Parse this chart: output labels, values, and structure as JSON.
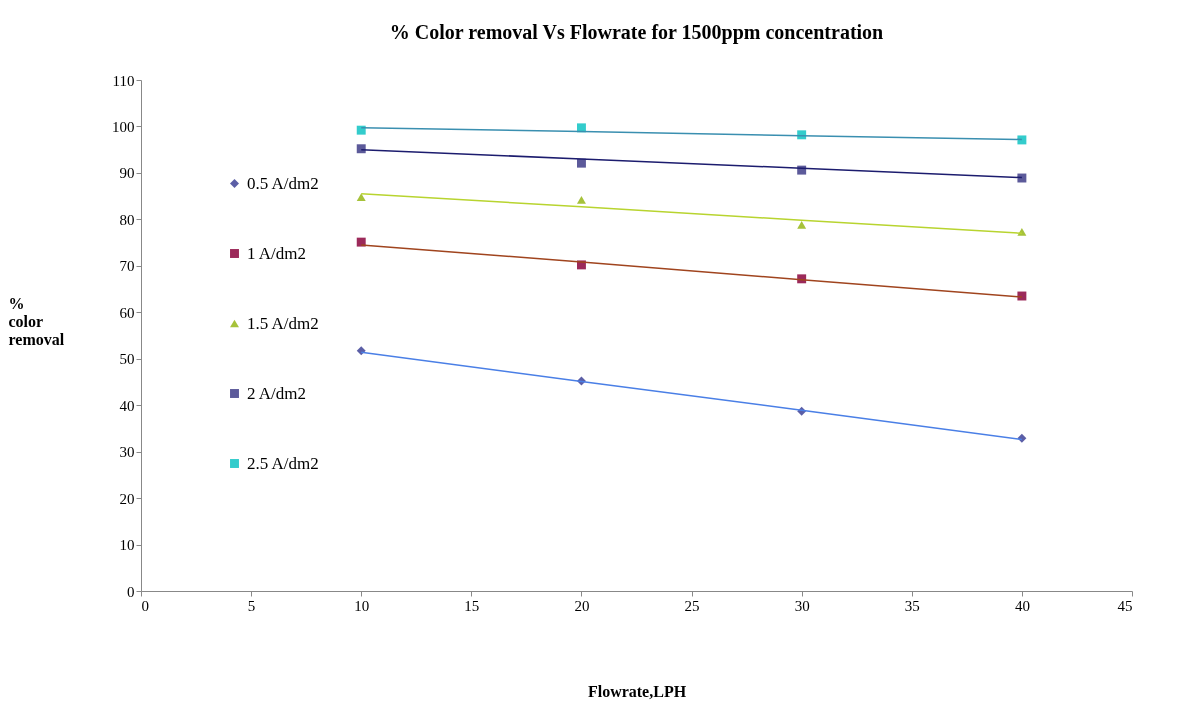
{
  "chart_data": {
    "type": "scatter",
    "title": "% Color removal Vs Flowrate for 1500ppm concentration",
    "xlabel": "Flowrate,LPH",
    "ylabel": "% color removal",
    "x": [
      10,
      20,
      30,
      40
    ],
    "xlim": [
      0,
      45
    ],
    "xticks": [
      0,
      5,
      10,
      15,
      20,
      25,
      30,
      35,
      40,
      45
    ],
    "ylim": [
      0,
      110
    ],
    "yticks": [
      0,
      10,
      20,
      30,
      40,
      50,
      60,
      70,
      80,
      90,
      100,
      110
    ],
    "grid": false,
    "legend": "left",
    "series": [
      {
        "name": "0.5 A/dm2",
        "color": "#5b5ea6",
        "marker": "diamond",
        "values": [
          51.7,
          45.2,
          38.7,
          32.9
        ]
      },
      {
        "name": "1 A/dm2",
        "color": "#9c2a5a",
        "marker": "square",
        "values": [
          75.1,
          70.2,
          67.2,
          63.5
        ]
      },
      {
        "name": "1.5 A/dm2",
        "color": "#a6c23a",
        "marker": "triangle",
        "values": [
          84.8,
          84.2,
          78.8,
          77.3
        ]
      },
      {
        "name": "2 A/dm2",
        "color": "#5c5a9a",
        "marker": "square",
        "values": [
          95.2,
          92.1,
          90.6,
          88.9
        ]
      },
      {
        "name": "2.5 A/dm2",
        "color": "#33cccc",
        "marker": "square",
        "values": [
          99.2,
          99.7,
          98.2,
          97.1
        ]
      },
      {
        "type": "line",
        "color": "#4a7fe6",
        "values": [
          51.4,
          45.1,
          38.9,
          32.6
        ]
      },
      {
        "type": "line",
        "color": "#a0441e",
        "values": [
          74.5,
          70.8,
          67,
          63.3
        ]
      },
      {
        "type": "line",
        "color": "#b8d42f",
        "values": [
          85.5,
          82.7,
          79.8,
          77
        ]
      },
      {
        "type": "line",
        "color": "#1c1c6e",
        "values": [
          95,
          93,
          91,
          89
        ]
      },
      {
        "type": "line",
        "color": "#3a8fb0",
        "values": [
          99.7,
          98.9,
          98,
          97.2
        ]
      }
    ]
  }
}
